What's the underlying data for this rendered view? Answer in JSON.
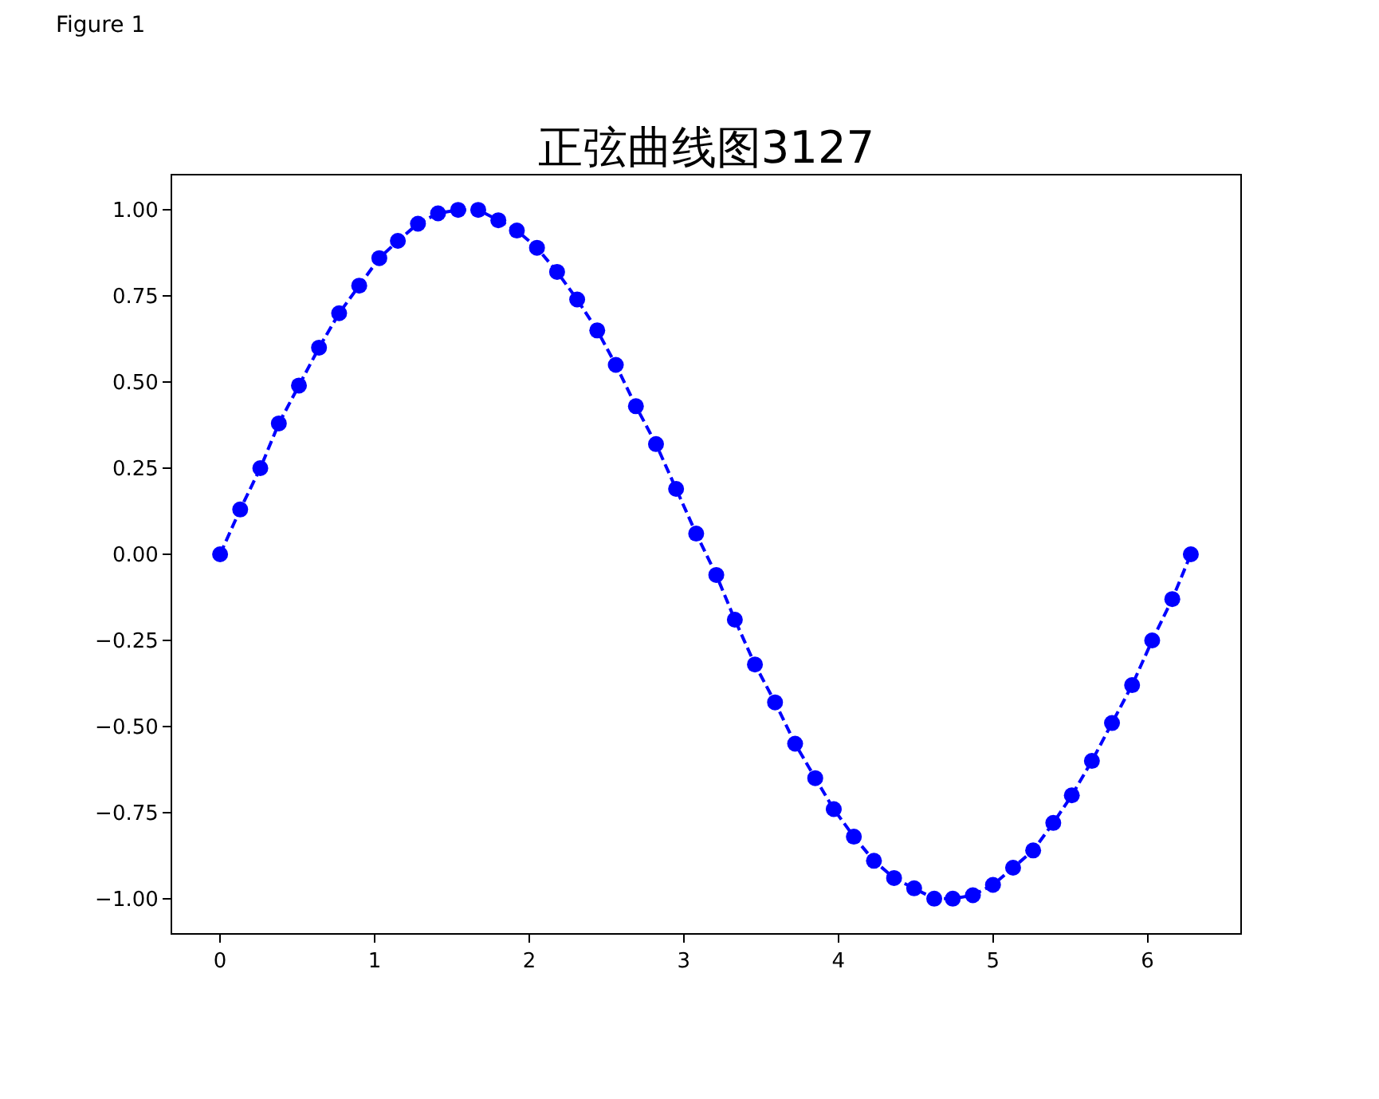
{
  "chart_data": {
    "type": "line",
    "title": "正弦曲线图3127",
    "annotations": [
      "Figure 1"
    ],
    "x": [
      0,
      0.13,
      0.26,
      0.38,
      0.51,
      0.64,
      0.77,
      0.9,
      1.03,
      1.15,
      1.28,
      1.41,
      1.54,
      1.67,
      1.8,
      1.92,
      2.05,
      2.18,
      2.31,
      2.44,
      2.56,
      2.69,
      2.82,
      2.95,
      3.08,
      3.21,
      3.33,
      3.46,
      3.59,
      3.72,
      3.85,
      3.97,
      4.1,
      4.23,
      4.36,
      4.49,
      4.62,
      4.74,
      4.87,
      5.0,
      5.13,
      5.26,
      5.39,
      5.51,
      5.64,
      5.77,
      5.9,
      6.03,
      6.16,
      6.28
    ],
    "series": [
      {
        "color": "#0000ff",
        "values": [
          0,
          0.13,
          0.25,
          0.38,
          0.49,
          0.6,
          0.7,
          0.78,
          0.86,
          0.91,
          0.96,
          0.99,
          1.0,
          1.0,
          0.97,
          0.94,
          0.89,
          0.82,
          0.74,
          0.65,
          0.55,
          0.43,
          0.32,
          0.19,
          0.06,
          -0.06,
          -0.19,
          -0.32,
          -0.43,
          -0.55,
          -0.65,
          -0.74,
          -0.82,
          -0.89,
          -0.94,
          -0.97,
          -1.0,
          -1.0,
          -0.99,
          -0.96,
          -0.91,
          -0.86,
          -0.78,
          -0.7,
          -0.6,
          -0.49,
          -0.38,
          -0.25,
          -0.13,
          0.0
        ]
      }
    ],
    "xlim": [
      -0.31,
      6.6
    ],
    "ylim": [
      -1.1,
      1.1
    ],
    "xticks": [
      0,
      1,
      2,
      3,
      4,
      5,
      6
    ],
    "yticks": [
      {
        "value": -1,
        "label": "−1.00"
      },
      {
        "value": -0.75,
        "label": "−0.75"
      },
      {
        "value": -0.5,
        "label": "−0.50"
      },
      {
        "value": -0.25,
        "label": "−0.25"
      },
      {
        "value": 0,
        "label": "0.00"
      },
      {
        "value": 0.25,
        "label": "0.25"
      },
      {
        "value": 0.5,
        "label": "0.50"
      },
      {
        "value": 0.75,
        "label": "0.75"
      },
      {
        "value": 1,
        "label": "1.00"
      }
    ],
    "grid": false,
    "marker": "circle",
    "line_style": "dashed"
  }
}
